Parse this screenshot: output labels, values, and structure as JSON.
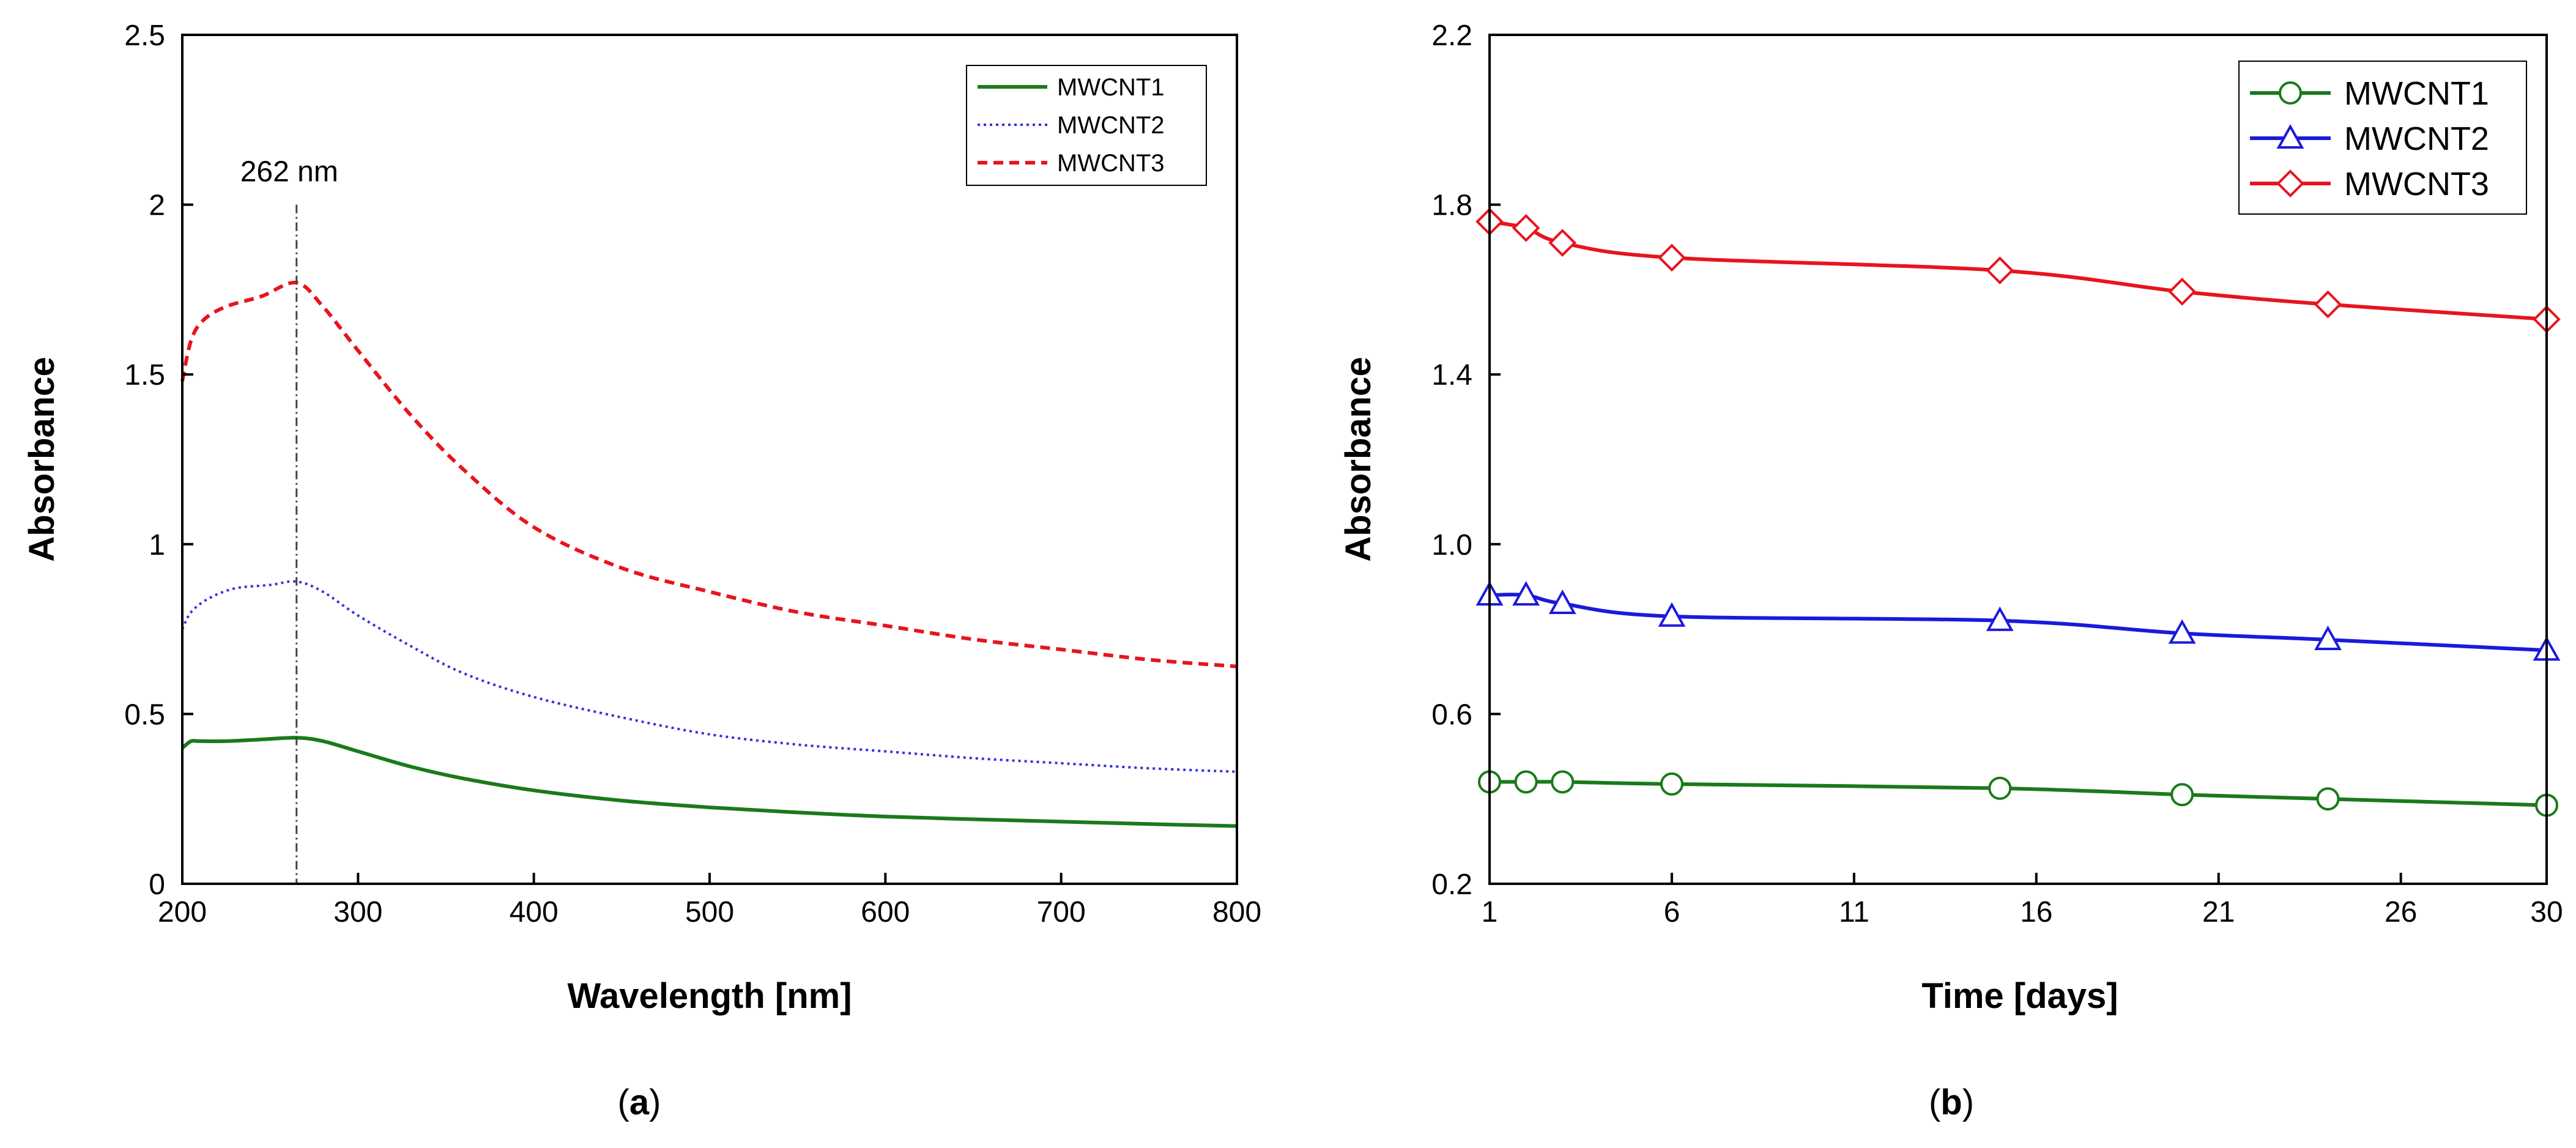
{
  "chart_data": [
    {
      "type": "line",
      "panel": "a",
      "panel_label_prefix": "(",
      "panel_label_letter": "a",
      "panel_label_suffix": ")",
      "xlabel": "Wavelength [nm]",
      "ylabel": "Absorbance",
      "xlim": [
        200,
        800
      ],
      "ylim": [
        0,
        2.5
      ],
      "xticks": [
        200,
        300,
        400,
        500,
        600,
        700,
        800
      ],
      "xtick_labels": [
        "200",
        "300",
        "400",
        "500",
        "600",
        "700",
        "800"
      ],
      "yticks": [
        0,
        0.5,
        1,
        1.5,
        2,
        2.5
      ],
      "ytick_labels": [
        "0",
        "0.5",
        "1",
        "1.5",
        "2",
        "2.5"
      ],
      "grid": false,
      "legend_position": "top-right",
      "annotation": {
        "text": "262 nm",
        "x": 265
      },
      "series": [
        {
          "name": "MWCNT1",
          "color": "#1a7a1a",
          "style": "solid",
          "x": [
            200,
            205,
            210,
            225,
            245,
            265,
            280,
            300,
            330,
            360,
            400,
            450,
            500,
            550,
            600,
            650,
            700,
            750,
            800
          ],
          "y": [
            0.4,
            0.42,
            0.42,
            0.42,
            0.425,
            0.43,
            0.42,
            0.39,
            0.345,
            0.31,
            0.275,
            0.245,
            0.225,
            0.21,
            0.198,
            0.19,
            0.183,
            0.176,
            0.17
          ]
        },
        {
          "name": "MWCNT2",
          "color": "#3333dd",
          "style": "dotted",
          "x": [
            200,
            205,
            215,
            230,
            250,
            265,
            280,
            300,
            330,
            360,
            400,
            450,
            500,
            550,
            600,
            650,
            700,
            750,
            800
          ],
          "y": [
            0.75,
            0.8,
            0.84,
            0.87,
            0.88,
            0.89,
            0.86,
            0.79,
            0.7,
            0.62,
            0.55,
            0.49,
            0.44,
            0.41,
            0.39,
            0.37,
            0.355,
            0.34,
            0.33
          ]
        },
        {
          "name": "MWCNT3",
          "color": "#e8141c",
          "style": "dashed",
          "x": [
            200,
            205,
            212,
            225,
            245,
            265,
            280,
            300,
            330,
            360,
            400,
            450,
            500,
            550,
            600,
            650,
            700,
            750,
            800
          ],
          "y": [
            1.48,
            1.6,
            1.66,
            1.7,
            1.73,
            1.77,
            1.7,
            1.57,
            1.38,
            1.22,
            1.05,
            0.93,
            0.86,
            0.8,
            0.76,
            0.72,
            0.69,
            0.66,
            0.64
          ]
        }
      ]
    },
    {
      "type": "line",
      "panel": "b",
      "panel_label_prefix": "(",
      "panel_label_letter": "b",
      "panel_label_suffix": ")",
      "xlabel": "Time [days]",
      "ylabel": "Absorbance",
      "xlim": [
        1,
        30
      ],
      "ylim": [
        0.2,
        2.2
      ],
      "xticks": [
        1,
        6,
        11,
        16,
        21,
        26,
        30
      ],
      "xtick_labels": [
        "1",
        "6",
        "11",
        "16",
        "21",
        "26",
        "30"
      ],
      "yticks": [
        0.2,
        0.6,
        1.0,
        1.4,
        1.8,
        2.2
      ],
      "ytick_labels": [
        "0.2",
        "0.6",
        "1.0",
        "1.4",
        "1.8",
        "2.2"
      ],
      "grid": false,
      "legend_position": "top-right",
      "series": [
        {
          "name": "MWCNT1",
          "color": "#1a7a1a",
          "marker": "circle",
          "x": [
            1,
            2,
            3,
            6,
            15,
            20,
            24,
            30
          ],
          "y": [
            0.44,
            0.44,
            0.44,
            0.435,
            0.425,
            0.41,
            0.4,
            0.385
          ]
        },
        {
          "name": "MWCNT2",
          "color": "#1a1adc",
          "marker": "triangle",
          "x": [
            1,
            2,
            3,
            6,
            15,
            20,
            24,
            30
          ],
          "y": [
            0.88,
            0.88,
            0.86,
            0.83,
            0.82,
            0.79,
            0.775,
            0.75
          ]
        },
        {
          "name": "MWCNT3",
          "color": "#e8141c",
          "marker": "diamond",
          "x": [
            1,
            2,
            3,
            6,
            15,
            20,
            24,
            30
          ],
          "y": [
            1.76,
            1.745,
            1.71,
            1.675,
            1.645,
            1.595,
            1.565,
            1.53
          ]
        }
      ]
    }
  ]
}
